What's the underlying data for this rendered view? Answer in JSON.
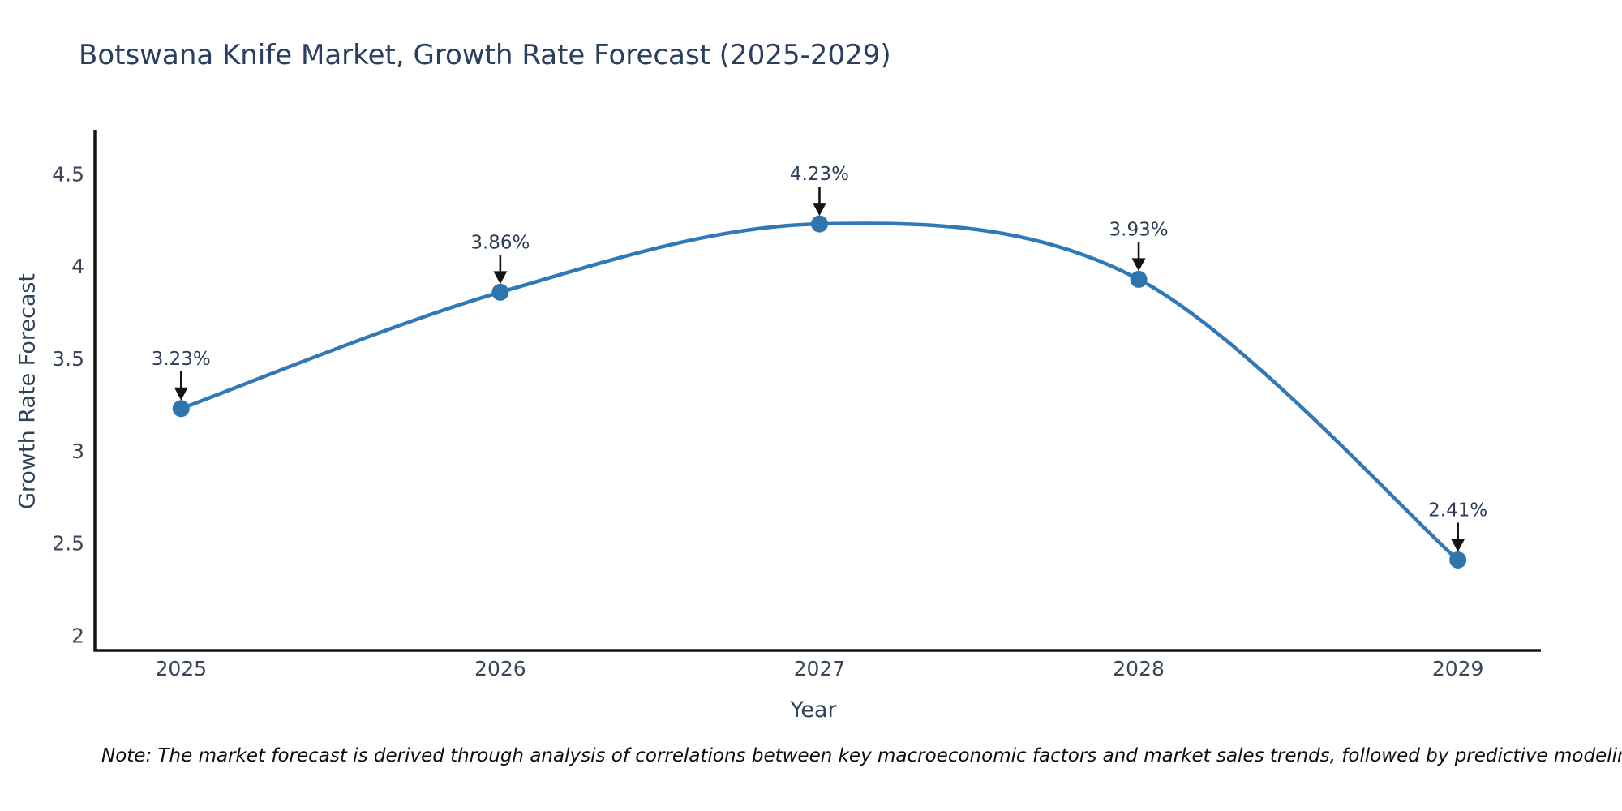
{
  "title": "Botswana Knife Market, Growth Rate Forecast (2025-2029)",
  "footnote": "Note: The market forecast is derived through analysis of correlations between key macroeconomic factors and market sales trends, followed by predictive modeling to project future sales",
  "chart_data": {
    "type": "line",
    "line_shape": "spline",
    "x": [
      2025,
      2026,
      2027,
      2028,
      2029
    ],
    "values": [
      3.23,
      3.86,
      4.23,
      3.93,
      2.41
    ],
    "point_labels": [
      "3.23%",
      "3.86%",
      "4.23%",
      "3.93%",
      "2.41%"
    ],
    "title": "Botswana Knife Market, Growth Rate Forecast (2025-2029)",
    "xlabel": "Year",
    "ylabel": "Growth Rate Forecast",
    "xticks": [
      2025,
      2026,
      2027,
      2028,
      2029
    ],
    "xtick_labels": [
      "2025",
      "2026",
      "2027",
      "2028",
      "2029"
    ],
    "yticks": [
      2,
      2.5,
      3,
      3.5,
      4,
      4.5
    ],
    "ytick_labels": [
      "2",
      "2.5",
      "3",
      "3.5",
      "4",
      "4.5"
    ],
    "xlim": [
      2024.73,
      2029.26
    ],
    "ylim": [
      1.92,
      4.74
    ],
    "grid": false,
    "legend": "none",
    "colors": {
      "line": "#3179b6",
      "marker": "#2e74ad",
      "axis": "#141414",
      "arrow": "#141414",
      "title_text": "#2a3f5f",
      "tick_text": "#3a4657",
      "annotation_text": "#2d3d55",
      "background": "#ffffff"
    }
  }
}
